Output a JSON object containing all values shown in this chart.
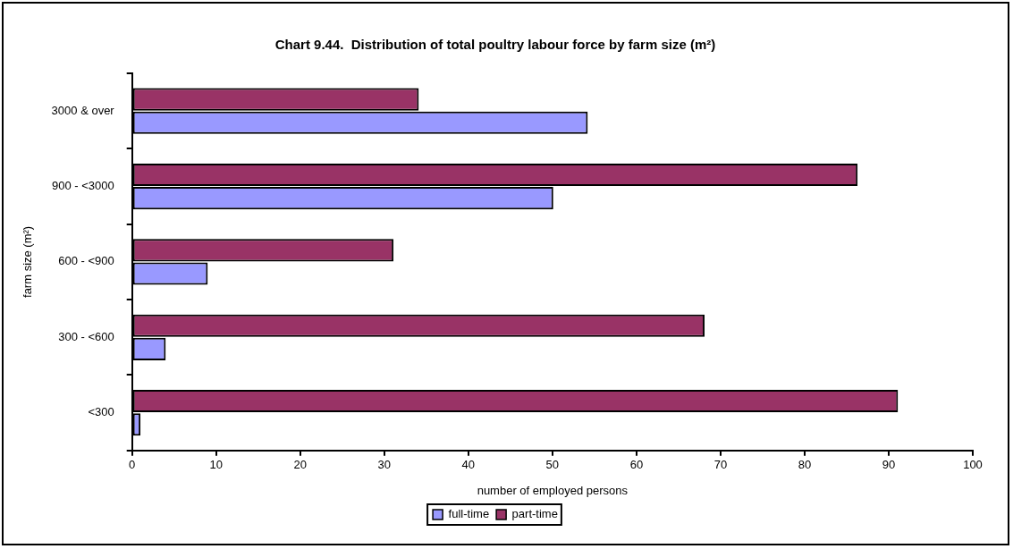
{
  "chart_data": {
    "type": "bar",
    "orientation": "horizontal",
    "title": "Chart 9.44.  Distribution of total poultry labour force by farm size (m²)",
    "xlabel": "number of employed persons",
    "ylabel": "farm size (m²)",
    "categories": [
      "3000 & over",
      "900 - <3000",
      "600 - <900",
      "300 - <600",
      "<300"
    ],
    "series": [
      {
        "name": "full-time",
        "color": "#9999ff",
        "values": [
          54.2,
          50.1,
          9.0,
          4.0,
          1.0
        ]
      },
      {
        "name": "part-time",
        "color": "#993366",
        "values": [
          34.1,
          86.3,
          31.1,
          68.1,
          91.1
        ]
      }
    ],
    "xlim": [
      0,
      100
    ],
    "xticks": [
      0,
      10,
      20,
      30,
      40,
      50,
      60,
      70,
      80,
      90,
      100
    ],
    "grid": false,
    "legend": "bottom"
  }
}
